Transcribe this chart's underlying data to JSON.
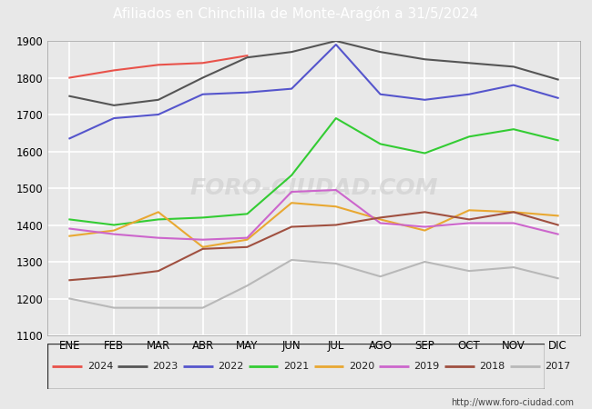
{
  "title": "Afiliados en Chinchilla de Monte-Aragón a 31/5/2024",
  "title_color": "#ffffff",
  "header_color": "#4a6fa5",
  "background_color": "#e8e8e8",
  "plot_bg_color": "#e8e8e8",
  "url_text": "http://www.foro-ciudad.com",
  "months": [
    "ENE",
    "FEB",
    "MAR",
    "ABR",
    "MAY",
    "JUN",
    "JUL",
    "AGO",
    "SEP",
    "OCT",
    "NOV",
    "DIC"
  ],
  "ylim": [
    1100,
    1900
  ],
  "yticks": [
    1100,
    1200,
    1300,
    1400,
    1500,
    1600,
    1700,
    1800,
    1900
  ],
  "series": {
    "2024": {
      "color": "#e8524a",
      "data": [
        1800,
        1820,
        1835,
        1840,
        1860,
        null,
        null,
        null,
        null,
        null,
        null,
        null
      ]
    },
    "2023": {
      "color": "#555555",
      "data": [
        1750,
        1725,
        1740,
        1800,
        1855,
        1870,
        1900,
        1870,
        1850,
        1840,
        1830,
        1795
      ]
    },
    "2022": {
      "color": "#5555cc",
      "data": [
        1635,
        1690,
        1700,
        1755,
        1760,
        1770,
        1890,
        1755,
        1740,
        1755,
        1780,
        1745
      ]
    },
    "2021": {
      "color": "#33cc33",
      "data": [
        1415,
        1400,
        1415,
        1420,
        1430,
        1535,
        1690,
        1620,
        1595,
        1640,
        1660,
        1630
      ]
    },
    "2020": {
      "color": "#e8a832",
      "data": [
        1370,
        1385,
        1435,
        1340,
        1360,
        1460,
        1450,
        1415,
        1385,
        1440,
        1435,
        1425
      ]
    },
    "2019": {
      "color": "#cc66cc",
      "data": [
        1390,
        1375,
        1365,
        1360,
        1365,
        1490,
        1495,
        1405,
        1395,
        1405,
        1405,
        1375
      ]
    },
    "2018": {
      "color": "#a05040",
      "data": [
        1250,
        1260,
        1275,
        1335,
        1340,
        1395,
        1400,
        1420,
        1435,
        1415,
        1435,
        1400
      ]
    },
    "2017": {
      "color": "#b8b8b8",
      "data": [
        1200,
        1175,
        1175,
        1175,
        1235,
        1305,
        1295,
        1260,
        1300,
        1275,
        1285,
        1255
      ]
    }
  },
  "legend_order": [
    "2024",
    "2023",
    "2022",
    "2021",
    "2020",
    "2019",
    "2018",
    "2017"
  ]
}
